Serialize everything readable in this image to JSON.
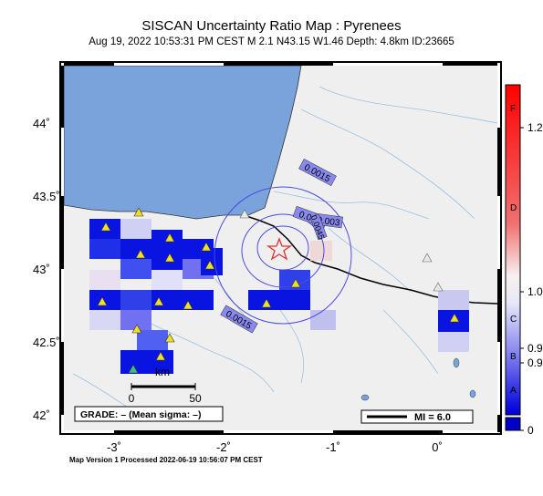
{
  "header": {
    "title": "SISCAN Uncertainty Ratio Map : Pyrenees",
    "subtitle": "Aug 19, 2022 10:53:31 PM CEST   M 2.1   N43.15 W1.46   Depth: 4.8km   ID:23665"
  },
  "footer": "Map Version 1 Processed 2022-06-19 10:56:07 PM CEST",
  "axes": {
    "lat_ticks": [
      "44˚",
      "43.5˚",
      "43˚",
      "42.5˚",
      "42˚"
    ],
    "lon_ticks": [
      "-3˚",
      "-2˚",
      "-1˚",
      "0˚"
    ]
  },
  "contours": [
    "0.0015",
    "0.003",
    "0.0045",
    "0.0015"
  ],
  "contour_extra": "0.003",
  "scale_bar": {
    "zero": "0",
    "fifty": "50",
    "unit": "km"
  },
  "grade_box": "GRADE: – (Mean sigma: –)",
  "mi_box": "MI = 6.0",
  "colorbar": {
    "letters": [
      "F",
      "D",
      "C",
      "B",
      "A"
    ],
    "values": [
      "1.2",
      "1.0",
      "0.9",
      "0.9",
      "0"
    ]
  },
  "colors": {
    "sea": "#7aa3dc",
    "land": "#efefef",
    "cell_dark": "#0a14e0",
    "cell_light": "#c9c9f0",
    "contour": "#4a4ae0",
    "star": "#e03030",
    "station": "#f0e020"
  }
}
